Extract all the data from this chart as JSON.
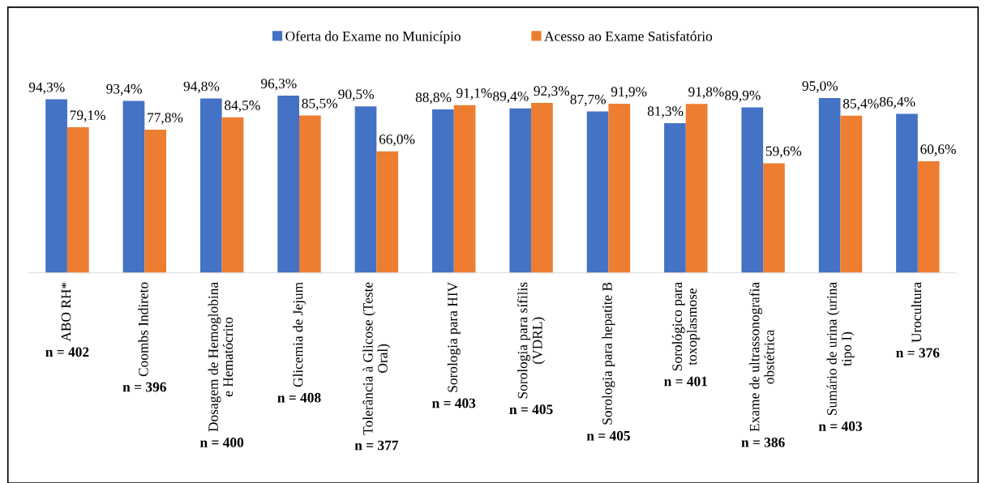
{
  "chart_data": {
    "type": "bar",
    "categories": [
      "ABO RH*",
      "Coombs Indireto",
      "Dosagem de Hemoglobina\ne Hematócrito",
      "Glicemia de Jejum",
      "Tolerância à Glicose (Teste\nOral)",
      "Sorologia para HIV",
      "Sorologia para sífilis\n(VDRL)",
      "Sorologia para hepatite B",
      "Sorológico para\ntoxoplasmose",
      "Exame de ultrassonografia\nobstétrica",
      "Sumário de urina (urina\ntipo I)",
      "Urocultura"
    ],
    "series": [
      {
        "name": "Oferta do Exame no Município",
        "color": "#4472c4",
        "values": [
          94.3,
          93.4,
          94.8,
          96.3,
          90.5,
          88.8,
          89.4,
          87.7,
          81.3,
          89.9,
          95.0,
          86.4
        ],
        "value_labels": [
          "94,3%",
          "93,4%",
          "94,8%",
          "96,3%",
          "90,5%",
          "88,8%",
          "89,4%",
          "87,7%",
          "81,3%",
          "89,9%",
          "95,0%",
          "86,4%"
        ]
      },
      {
        "name": "Acesso ao Exame Satisfatório",
        "color": "#ed7d31",
        "values": [
          79.1,
          77.8,
          84.5,
          85.5,
          66.0,
          91.1,
          92.3,
          91.9,
          91.8,
          59.6,
          85.4,
          60.6
        ],
        "value_labels": [
          "79,1%",
          "77,8%",
          "84,5%",
          "85,5%",
          "66,0%",
          "91,1%",
          "92,3%",
          "91,9%",
          "91,8%",
          "59,6%",
          "85,4%",
          "60,6%"
        ]
      }
    ],
    "annotations": [
      "n = 402",
      "n = 396",
      "n = 400",
      "n = 408",
      "n = 377",
      "n = 403",
      "n = 405",
      "n = 405",
      "n = 401",
      "n = 386",
      "n = 403",
      "n = 376"
    ],
    "legend": "top",
    "grid": false
  }
}
